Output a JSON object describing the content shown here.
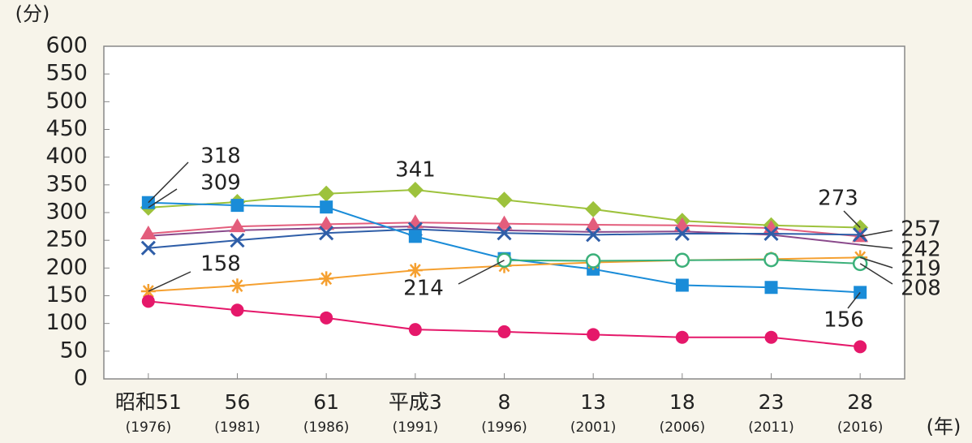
{
  "chart_data": {
    "type": "line",
    "y_unit": "(分)",
    "x_unit": "(年)",
    "categories": [
      "昭和51",
      "56",
      "61",
      "平成3",
      "8",
      "13",
      "18",
      "23",
      "28"
    ],
    "category_years": [
      "(1976)",
      "(1981)",
      "(1986)",
      "(1991)",
      "(1996)",
      "(2001)",
      "(2006)",
      "(2011)",
      "(2016)"
    ],
    "ylim": [
      0,
      600
    ],
    "yticks": [
      0,
      50,
      100,
      150,
      200,
      250,
      300,
      350,
      400,
      450,
      500,
      550,
      600
    ],
    "series": [
      {
        "color": "#9dc23c",
        "marker": "diamond",
        "values": [
          309,
          319,
          334,
          341,
          323,
          306,
          285,
          277,
          273
        ],
        "value_labels": [
          "309",
          null,
          null,
          "341",
          null,
          null,
          null,
          null,
          "273"
        ]
      },
      {
        "color": "#8a4a8c",
        "marker": "none",
        "values": [
          258,
          268,
          272,
          275,
          268,
          265,
          266,
          260,
          242
        ],
        "value_labels": [
          null,
          null,
          null,
          null,
          null,
          null,
          null,
          null,
          "242"
        ]
      },
      {
        "color": "#e35d7c",
        "marker": "triangle",
        "values": [
          262,
          275,
          279,
          282,
          280,
          278,
          277,
          272,
          257
        ],
        "value_labels": [
          null,
          null,
          null,
          null,
          null,
          null,
          null,
          null,
          "257"
        ]
      },
      {
        "color": "#2f5ea8",
        "marker": "x",
        "values": [
          236,
          250,
          263,
          270,
          263,
          260,
          262,
          262,
          260
        ]
      },
      {
        "color": "#1a8cd8",
        "marker": "square",
        "values": [
          318,
          313,
          310,
          257,
          217,
          198,
          169,
          165,
          156
        ],
        "value_labels": [
          "318",
          null,
          null,
          null,
          null,
          null,
          null,
          null,
          "156"
        ]
      },
      {
        "color": "#f5a030",
        "marker": "asterisk",
        "values": [
          158,
          168,
          181,
          196,
          204,
          210,
          214,
          216,
          219
        ],
        "value_labels": [
          "158",
          null,
          null,
          null,
          null,
          null,
          null,
          null,
          "219"
        ]
      },
      {
        "color": "#3bb07a",
        "marker": "open-circle",
        "values": [
          null,
          null,
          null,
          null,
          214,
          213,
          214,
          215,
          208
        ],
        "value_labels": [
          null,
          null,
          null,
          null,
          "214",
          null,
          null,
          null,
          "208"
        ]
      },
      {
        "color": "#e5186a",
        "marker": "circle",
        "values": [
          140,
          124,
          110,
          89,
          85,
          80,
          75,
          75,
          58
        ]
      }
    ]
  }
}
